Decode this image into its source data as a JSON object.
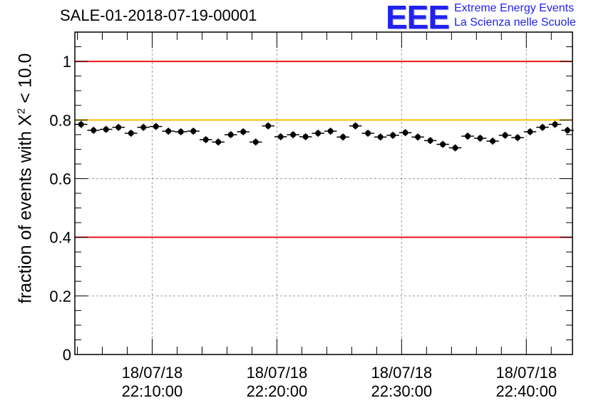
{
  "header": {
    "run_title": "SALE-01-2018-07-19-00001",
    "logo_text": "EEE",
    "logo_line1": "Extreme Energy Events",
    "logo_line2": "La Scienza nelle Scuole"
  },
  "chart_data": {
    "type": "scatter",
    "title": "SALE-01-2018-07-19-00001",
    "xlabel": "",
    "ylabel_prefix": "fraction of events with ",
    "ylabel_symbol": "X",
    "ylabel_sup": "2",
    "ylabel_suffix": " < 10.0",
    "x_unit": "minutes after 22:00:00",
    "xlim": [
      3.8,
      43.7
    ],
    "ylim": [
      0,
      1.1
    ],
    "y_ticks": [
      0,
      0.2,
      0.4,
      0.6,
      0.8,
      1
    ],
    "y_tick_labels": [
      "0",
      "0.2",
      "0.4",
      "0.6",
      "0.8",
      "1"
    ],
    "x_ticks": [
      10,
      20,
      30,
      40
    ],
    "x_tick_labels": [
      {
        "date": "18/07/18",
        "time": "22:10:00"
      },
      {
        "date": "18/07/18",
        "time": "22:20:00"
      },
      {
        "date": "18/07/18",
        "time": "22:30:00"
      },
      {
        "date": "18/07/18",
        "time": "22:40:00"
      }
    ],
    "grid": true,
    "reference_lines": [
      {
        "y": 1.0,
        "color": "#e8191d",
        "name": "upper-limit"
      },
      {
        "y": 0.8,
        "color": "#ffc000",
        "name": "warning-threshold"
      },
      {
        "y": 0.4,
        "color": "#e8191d",
        "name": "lower-limit"
      }
    ],
    "bin_width_min": 1,
    "x": [
      4.3,
      5.3,
      6.3,
      7.3,
      8.3,
      9.3,
      10.3,
      11.3,
      12.3,
      13.3,
      14.3,
      15.3,
      16.3,
      17.3,
      18.3,
      19.3,
      20.3,
      21.3,
      22.3,
      23.3,
      24.3,
      25.3,
      26.3,
      27.3,
      28.3,
      29.3,
      30.3,
      31.3,
      32.3,
      33.3,
      34.3,
      35.3,
      36.3,
      37.3,
      38.3,
      39.3,
      40.3,
      41.3,
      42.3,
      43.3
    ],
    "values": [
      0.785,
      0.765,
      0.768,
      0.775,
      0.755,
      0.775,
      0.778,
      0.762,
      0.76,
      0.762,
      0.733,
      0.725,
      0.75,
      0.76,
      0.725,
      0.78,
      0.743,
      0.75,
      0.743,
      0.755,
      0.762,
      0.742,
      0.78,
      0.755,
      0.742,
      0.748,
      0.757,
      0.742,
      0.73,
      0.717,
      0.705,
      0.745,
      0.738,
      0.728,
      0.748,
      0.74,
      0.76,
      0.775,
      0.785,
      0.765
    ],
    "errors": [
      0.012,
      0.012,
      0.012,
      0.012,
      0.012,
      0.012,
      0.012,
      0.012,
      0.012,
      0.012,
      0.012,
      0.012,
      0.012,
      0.012,
      0.012,
      0.012,
      0.012,
      0.012,
      0.012,
      0.012,
      0.012,
      0.012,
      0.012,
      0.012,
      0.012,
      0.012,
      0.012,
      0.012,
      0.012,
      0.012,
      0.012,
      0.012,
      0.012,
      0.012,
      0.012,
      0.012,
      0.012,
      0.012,
      0.012,
      0.012
    ]
  }
}
